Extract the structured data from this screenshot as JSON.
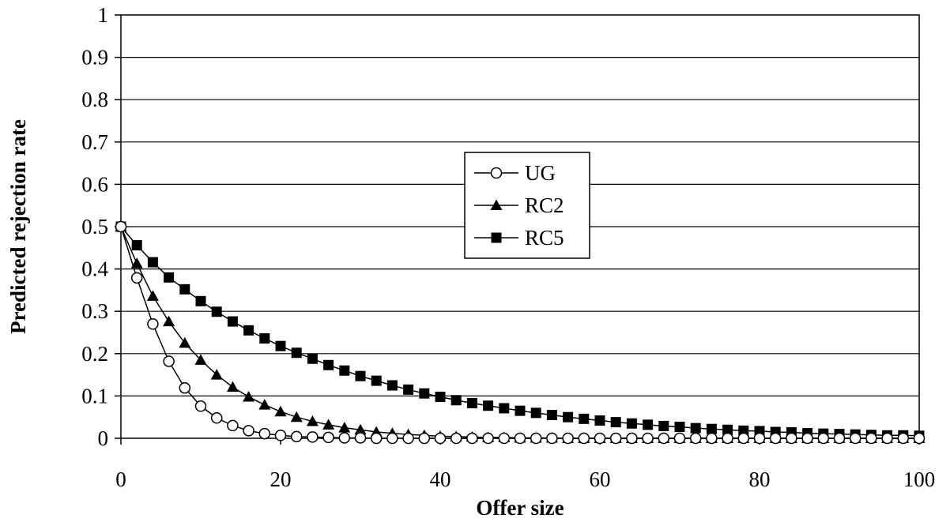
{
  "chart_data": {
    "type": "line",
    "title": "",
    "xlabel": "Offer size",
    "ylabel": "Predicted rejection rate",
    "xlim": [
      0,
      100
    ],
    "ylim": [
      0,
      1
    ],
    "x_ticks": [
      "0",
      "20",
      "40",
      "60",
      "80",
      "100"
    ],
    "y_ticks": [
      "0",
      "0.1",
      "0.2",
      "0.3",
      "0.4",
      "0.5",
      "0.6",
      "0.7",
      "0.8",
      "0.9",
      "1"
    ],
    "grid": "horizontal",
    "legend_position": "center",
    "x": [
      0,
      2,
      4,
      6,
      8,
      10,
      12,
      14,
      16,
      18,
      20,
      22,
      24,
      26,
      28,
      30,
      32,
      34,
      36,
      38,
      40,
      42,
      44,
      46,
      48,
      50,
      52,
      54,
      56,
      58,
      60,
      62,
      64,
      66,
      68,
      70,
      72,
      74,
      76,
      78,
      80,
      82,
      84,
      86,
      88,
      90,
      92,
      94,
      96,
      98,
      100
    ],
    "series": [
      {
        "name": "UG",
        "marker": "circle-open",
        "values": [
          0.5,
          0.379,
          0.27,
          0.182,
          0.119,
          0.076,
          0.048,
          0.03,
          0.018,
          0.011,
          0.007,
          0.004,
          0.003,
          0.002,
          0.001,
          0.001,
          0,
          0,
          0,
          0,
          0,
          0,
          0,
          0,
          0,
          0,
          0,
          0,
          0,
          0,
          0,
          0,
          0,
          0,
          0,
          0,
          0,
          0,
          0,
          0,
          0,
          0,
          0,
          0,
          0,
          0,
          0,
          0,
          0,
          0,
          0
        ]
      },
      {
        "name": "RC2",
        "marker": "triangle-filled",
        "values": [
          0.5,
          0.413,
          0.336,
          0.276,
          0.225,
          0.185,
          0.15,
          0.121,
          0.098,
          0.079,
          0.063,
          0.05,
          0.04,
          0.032,
          0.025,
          0.02,
          0.015,
          0.012,
          0.009,
          0.007,
          0.005,
          0.004,
          0.003,
          0.002,
          0.002,
          0.001,
          0.001,
          0.001,
          0,
          0,
          0,
          0,
          0,
          0,
          0,
          0,
          0,
          0,
          0,
          0,
          0,
          0,
          0,
          0,
          0,
          0,
          0,
          0,
          0,
          0,
          0
        ]
      },
      {
        "name": "RC5",
        "marker": "square-filled",
        "values": [
          0.5,
          0.456,
          0.416,
          0.38,
          0.352,
          0.324,
          0.299,
          0.276,
          0.255,
          0.236,
          0.218,
          0.202,
          0.188,
          0.173,
          0.16,
          0.147,
          0.136,
          0.125,
          0.115,
          0.106,
          0.098,
          0.09,
          0.083,
          0.077,
          0.071,
          0.065,
          0.06,
          0.055,
          0.05,
          0.046,
          0.042,
          0.038,
          0.035,
          0.032,
          0.029,
          0.027,
          0.024,
          0.022,
          0.02,
          0.018,
          0.017,
          0.015,
          0.014,
          0.012,
          0.011,
          0.01,
          0.009,
          0.008,
          0.007,
          0.007,
          0.006
        ]
      }
    ]
  }
}
